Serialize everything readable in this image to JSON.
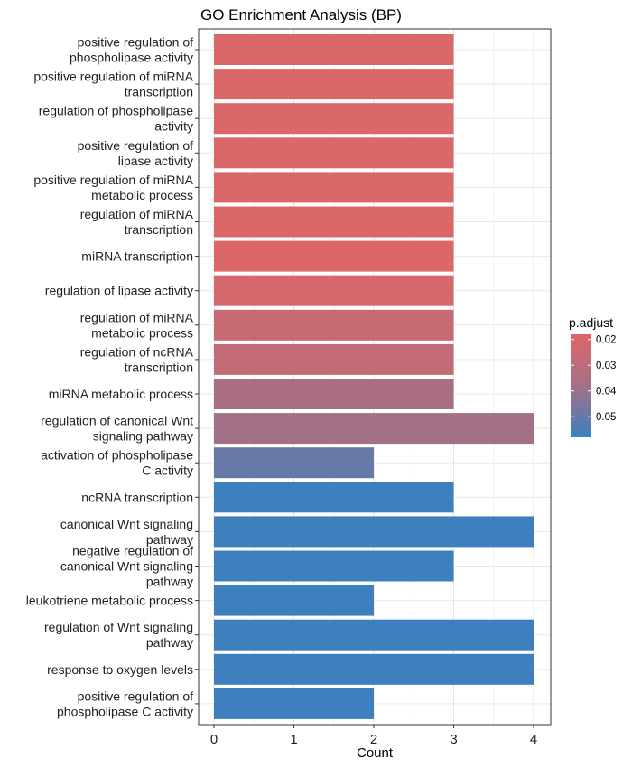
{
  "chart_data": {
    "type": "bar",
    "orientation": "horizontal",
    "title": "GO Enrichment Analysis (BP)",
    "xlabel": "Count",
    "ylabel": "",
    "xlim": [
      0,
      4
    ],
    "x_ticks": [
      "0",
      "1",
      "2",
      "3",
      "4"
    ],
    "grid": true,
    "legend": {
      "title": "p.adjust",
      "placement": "right",
      "ticks": [
        0.02,
        0.03,
        0.04,
        0.05
      ],
      "range": [
        0.018,
        0.058
      ],
      "color_low": "#e06666",
      "color_high": "#3a80bf"
    },
    "categories": [
      "positive regulation of\nphospholipase activity",
      "positive regulation of miRNA\ntranscription",
      "regulation of phospholipase\nactivity",
      "positive regulation of\nlipase activity",
      "positive regulation of miRNA\nmetabolic process",
      "regulation of miRNA\ntranscription",
      "miRNA transcription",
      "regulation of lipase activity",
      "regulation of miRNA\nmetabolic process",
      "regulation of ncRNA\ntranscription",
      "miRNA metabolic process",
      "regulation of canonical Wnt\nsignaling pathway",
      "activation of phospholipase\nC activity",
      "ncRNA transcription",
      "canonical Wnt signaling\npathway",
      "negative regulation of\ncanonical Wnt signaling\npathway",
      "leukotriene metabolic process",
      "regulation of Wnt signaling\npathway",
      "response to oxygen levels",
      "positive regulation of\nphospholipase C activity"
    ],
    "values": [
      3,
      3,
      3,
      3,
      3,
      3,
      3,
      3,
      3,
      3,
      3,
      4,
      2,
      3,
      4,
      3,
      2,
      4,
      4,
      2
    ],
    "p_adjust": [
      0.019,
      0.019,
      0.019,
      0.019,
      0.019,
      0.019,
      0.019,
      0.021,
      0.024,
      0.025,
      0.031,
      0.033,
      0.047,
      0.057,
      0.057,
      0.057,
      0.057,
      0.057,
      0.057,
      0.057
    ]
  }
}
